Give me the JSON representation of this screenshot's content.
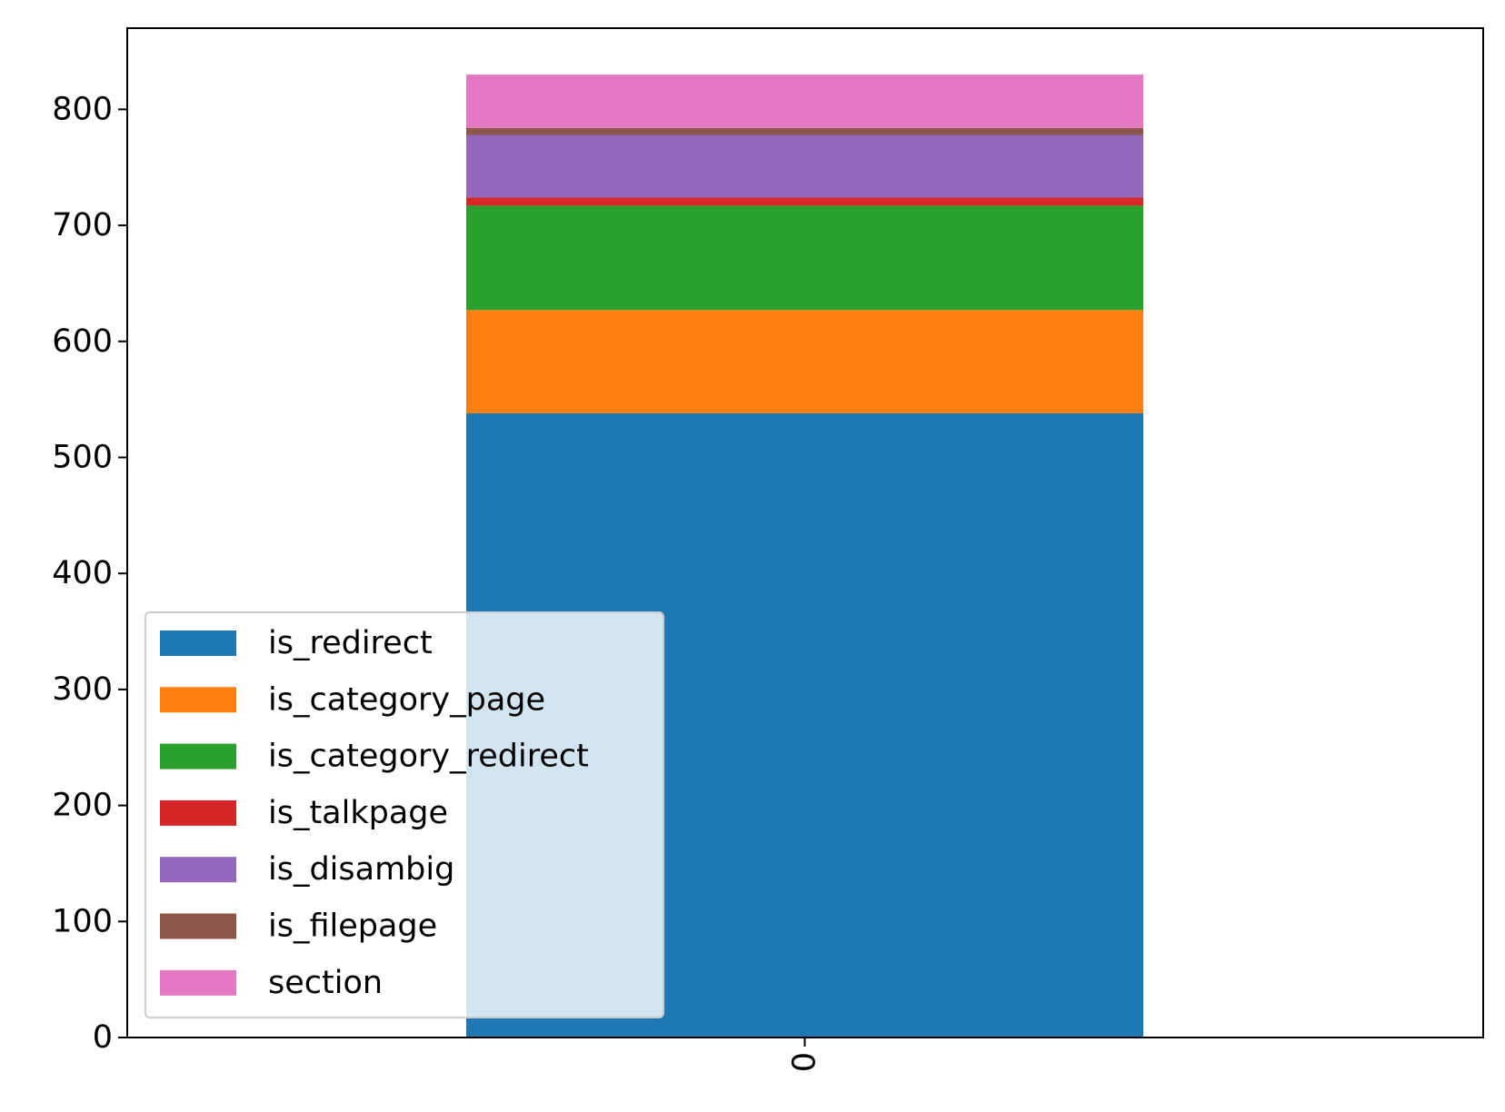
{
  "chart_data": {
    "type": "bar",
    "stacked": true,
    "categories": [
      "0"
    ],
    "series": [
      {
        "name": "is_redirect",
        "values": [
          538
        ],
        "color": "#1f77b4"
      },
      {
        "name": "is_category_page",
        "values": [
          89
        ],
        "color": "#ff7f0e"
      },
      {
        "name": "is_category_redirect",
        "values": [
          90
        ],
        "color": "#2ca02c"
      },
      {
        "name": "is_talkpage",
        "values": [
          7
        ],
        "color": "#d62728"
      },
      {
        "name": "is_disambig",
        "values": [
          54
        ],
        "color": "#9467bd"
      },
      {
        "name": "is_filepage",
        "values": [
          6
        ],
        "color": "#8c564b"
      },
      {
        "name": "section",
        "values": [
          46
        ],
        "color": "#e377c2"
      }
    ],
    "ylim": [
      0,
      870
    ],
    "yticks": [
      0,
      100,
      200,
      300,
      400,
      500,
      600,
      700,
      800
    ],
    "xtick_rotation": 90,
    "grid": false,
    "legend_position": "lower-left"
  }
}
